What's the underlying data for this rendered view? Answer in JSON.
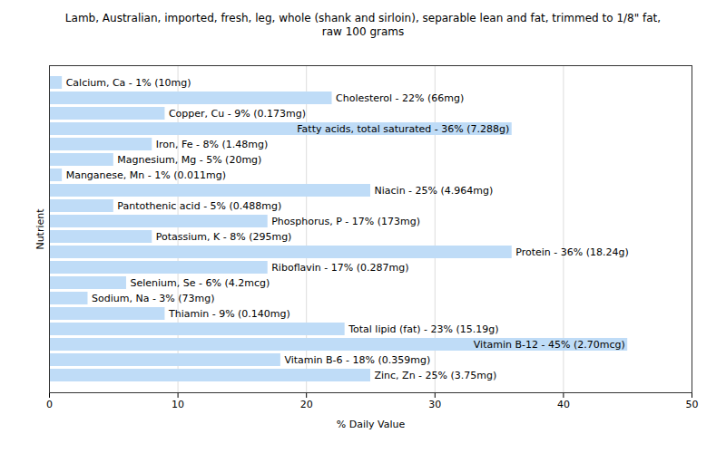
{
  "chart_data": {
    "type": "bar",
    "orientation": "horizontal",
    "title": "Lamb, Australian, imported, fresh, leg, whole (shank and sirloin), separable lean and fat, trimmed to 1/8\" fat, raw 100 grams",
    "x_label": "% Daily Value",
    "y_label": "Nutrient",
    "categories": [
      "Calcium, Ca",
      "Cholesterol",
      "Copper, Cu",
      "Fatty acids, total saturated",
      "Iron, Fe",
      "Magnesium, Mg",
      "Manganese, Mn",
      "Niacin",
      "Pantothenic acid",
      "Phosphorus, P",
      "Potassium, K",
      "Protein",
      "Riboflavin",
      "Selenium, Se",
      "Sodium, Na",
      "Thiamin",
      "Total lipid (fat)",
      "Vitamin B-12",
      "Vitamin B-6",
      "Zinc, Zn"
    ],
    "values": [
      1,
      22,
      9,
      36,
      8,
      5,
      1,
      25,
      5,
      17,
      8,
      36,
      17,
      6,
      3,
      9,
      23,
      45,
      18,
      25
    ],
    "value_labels": [
      "Calcium, Ca - 1% (10mg)",
      "Cholesterol - 22% (66mg)",
      "Copper, Cu - 9% (0.173mg)",
      "Fatty acids, total saturated - 36% (7.288g)",
      "Iron, Fe - 8% (1.48mg)",
      "Magnesium, Mg - 5% (20mg)",
      "Manganese, Mn - 1% (0.011mg)",
      "Niacin - 25% (4.964mg)",
      "Pantothenic acid - 5% (0.488mg)",
      "Phosphorus, P - 17% (173mg)",
      "Potassium, K - 8% (295mg)",
      "Protein - 36% (18.24g)",
      "Riboflavin - 17% (0.287mg)",
      "Selenium, Se - 6% (4.2mcg)",
      "Sodium, Na - 3% (73mg)",
      "Thiamin - 9% (0.140mg)",
      "Total lipid (fat) - 23% (15.19g)",
      "Vitamin B-12 - 45% (2.70mcg)",
      "Vitamin B-6 - 18% (0.359mg)",
      "Zinc, Zn - 25% (3.75mg)"
    ],
    "data_labels": true,
    "color": "#bfdcf7",
    "xlim": [
      0,
      50
    ],
    "xticks": [
      0,
      10,
      20,
      30,
      40,
      50
    ],
    "grid": true,
    "tick_labels": "x"
  }
}
